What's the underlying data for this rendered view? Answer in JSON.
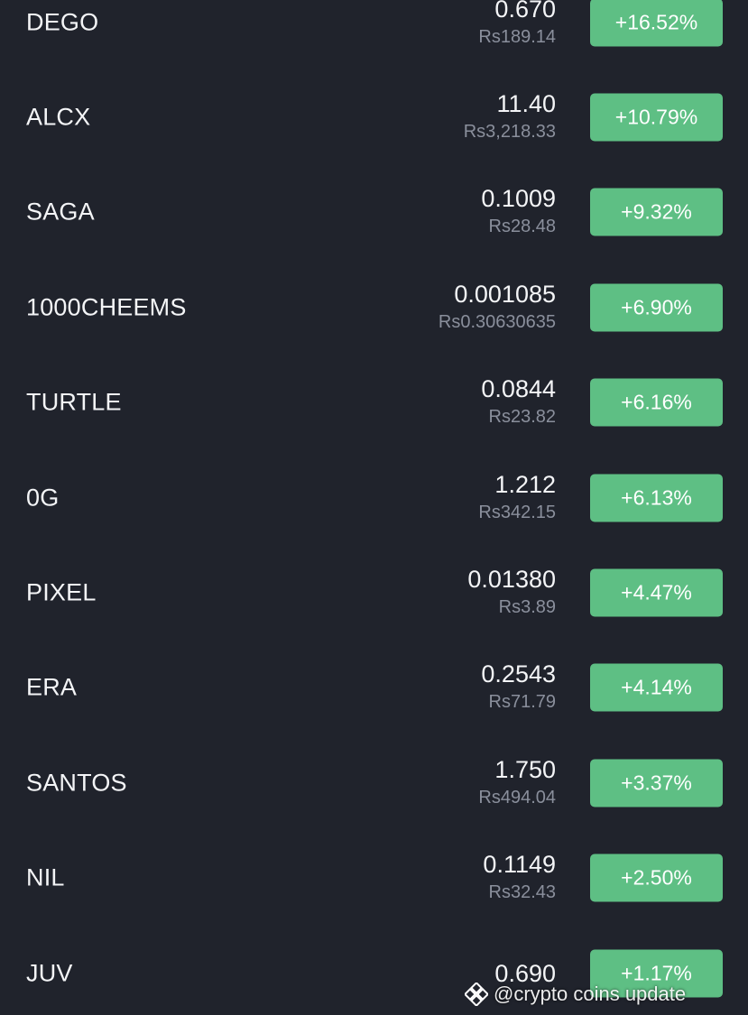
{
  "colors": {
    "background": "#20232c",
    "positive": "#5ebf84",
    "primary_text": "#f4f5f7",
    "secondary_text": "#8a8f9c"
  },
  "coins": [
    {
      "symbol": "DEGO",
      "price": "0.670",
      "fiat": "Rs189.14",
      "change": "+16.52%"
    },
    {
      "symbol": "ALCX",
      "price": "11.40",
      "fiat": "Rs3,218.33",
      "change": "+10.79%"
    },
    {
      "symbol": "SAGA",
      "price": "0.1009",
      "fiat": "Rs28.48",
      "change": "+9.32%"
    },
    {
      "symbol": "1000CHEEMS",
      "price": "0.001085",
      "fiat": "Rs0.30630635",
      "change": "+6.90%"
    },
    {
      "symbol": "TURTLE",
      "price": "0.0844",
      "fiat": "Rs23.82",
      "change": "+6.16%"
    },
    {
      "symbol": "0G",
      "price": "1.212",
      "fiat": "Rs342.15",
      "change": "+6.13%"
    },
    {
      "symbol": "PIXEL",
      "price": "0.01380",
      "fiat": "Rs3.89",
      "change": "+4.47%"
    },
    {
      "symbol": "ERA",
      "price": "0.2543",
      "fiat": "Rs71.79",
      "change": "+4.14%"
    },
    {
      "symbol": "SANTOS",
      "price": "1.750",
      "fiat": "Rs494.04",
      "change": "+3.37%"
    },
    {
      "symbol": "NIL",
      "price": "0.1149",
      "fiat": "Rs32.43",
      "change": "+2.50%"
    },
    {
      "symbol": "JUV",
      "price": "0.690",
      "fiat": "",
      "change": "+1.17%"
    }
  ],
  "watermark": {
    "icon": "binance-logo-icon",
    "text": "@crypto coins update"
  }
}
